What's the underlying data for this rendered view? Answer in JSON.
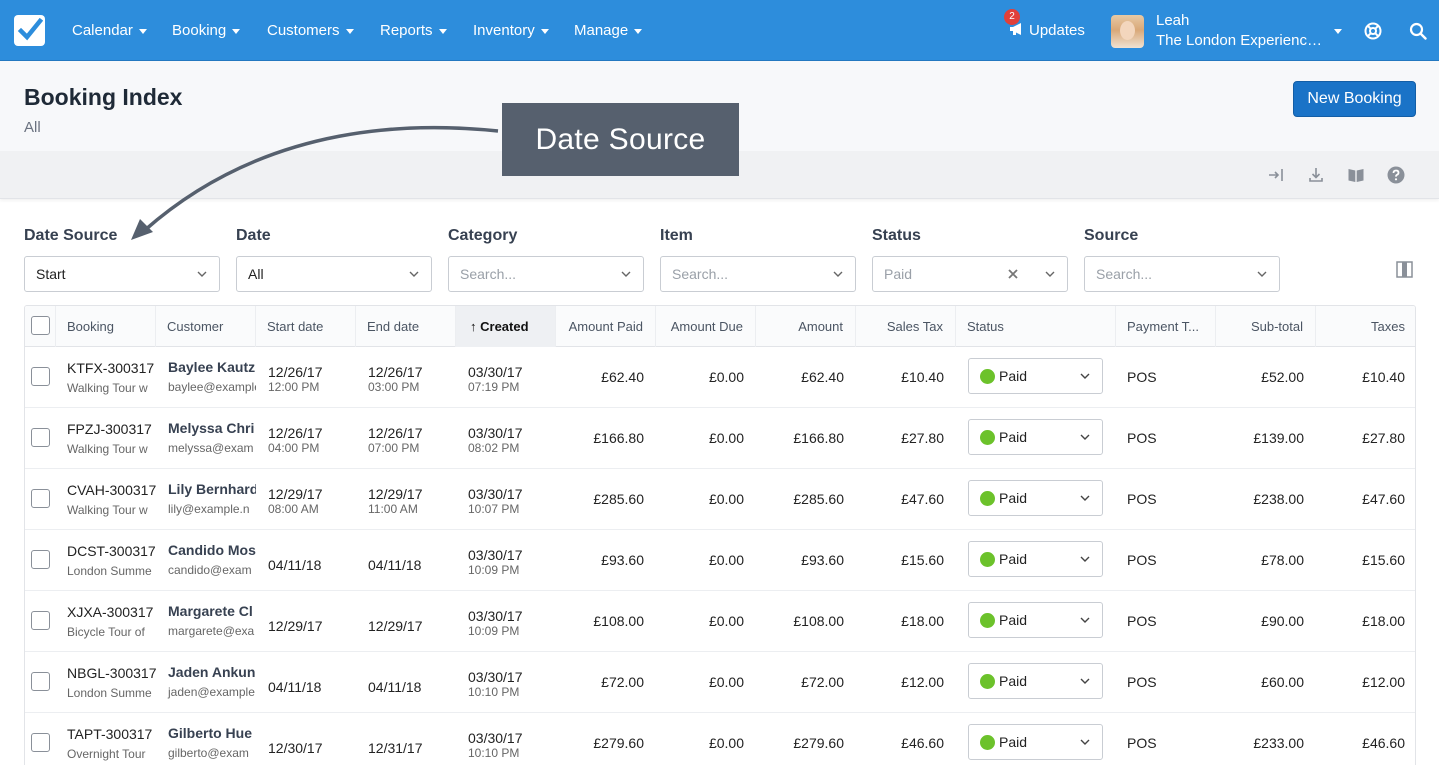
{
  "nav": {
    "items": [
      "Calendar",
      "Booking",
      "Customers",
      "Reports",
      "Inventory",
      "Manage"
    ],
    "updates_label": "Updates",
    "updates_count": "2",
    "user_name": "Leah",
    "user_company": "The London Experienc…"
  },
  "header": {
    "title": "Booking Index",
    "subtitle": "All",
    "new_booking_label": "New Booking"
  },
  "callout": {
    "text": "Date Source"
  },
  "filters": [
    {
      "label": "Date Source",
      "value": "Start",
      "placeholder": ""
    },
    {
      "label": "Date",
      "value": "All",
      "placeholder": ""
    },
    {
      "label": "Category",
      "value": "",
      "placeholder": "Search..."
    },
    {
      "label": "Item",
      "value": "",
      "placeholder": "Search..."
    },
    {
      "label": "Status",
      "value": "Paid",
      "placeholder": ""
    },
    {
      "label": "Source",
      "value": "",
      "placeholder": "Search..."
    }
  ],
  "table": {
    "columns": [
      "Booking",
      "Customer",
      "Start date",
      "End date",
      "Created",
      "Amount Paid",
      "Amount Due",
      "Amount",
      "Sales Tax",
      "Status",
      "Payment T...",
      "Sub-total",
      "Taxes"
    ],
    "sorted_column": "Created",
    "rows": [
      {
        "booking_id": "KTFX-300317",
        "booking_item": "Walking Tour w",
        "customer_name": "Baylee Kautz",
        "customer_email": "baylee@example",
        "start_date": "12/26/17",
        "start_time": "12:00 PM",
        "end_date": "12/26/17",
        "end_time": "03:00 PM",
        "created_date": "03/30/17",
        "created_time": "07:19 PM",
        "amount_paid": "£62.40",
        "amount_due": "£0.00",
        "amount": "£62.40",
        "sales_tax": "£10.40",
        "status": "Paid",
        "payment_type": "POS",
        "subtotal": "£52.00",
        "taxes": "£10.40"
      },
      {
        "booking_id": "FPZJ-300317",
        "booking_item": "Walking Tour w",
        "customer_name": "Melyssa Chri",
        "customer_email": "melyssa@exam",
        "start_date": "12/26/17",
        "start_time": "04:00 PM",
        "end_date": "12/26/17",
        "end_time": "07:00 PM",
        "created_date": "03/30/17",
        "created_time": "08:02 PM",
        "amount_paid": "£166.80",
        "amount_due": "£0.00",
        "amount": "£166.80",
        "sales_tax": "£27.80",
        "status": "Paid",
        "payment_type": "POS",
        "subtotal": "£139.00",
        "taxes": "£27.80"
      },
      {
        "booking_id": "CVAH-300317",
        "booking_item": "Walking Tour w",
        "customer_name": "Lily Bernhard",
        "customer_email": "lily@example.n",
        "start_date": "12/29/17",
        "start_time": "08:00 AM",
        "end_date": "12/29/17",
        "end_time": "11:00 AM",
        "created_date": "03/30/17",
        "created_time": "10:07 PM",
        "amount_paid": "£285.60",
        "amount_due": "£0.00",
        "amount": "£285.60",
        "sales_tax": "£47.60",
        "status": "Paid",
        "payment_type": "POS",
        "subtotal": "£238.00",
        "taxes": "£47.60"
      },
      {
        "booking_id": "DCST-300317",
        "booking_item": "London Summe",
        "customer_name": "Candido Mos",
        "customer_email": "candido@exam",
        "start_date": "04/11/18",
        "start_time": "",
        "end_date": "04/11/18",
        "end_time": "",
        "created_date": "03/30/17",
        "created_time": "10:09 PM",
        "amount_paid": "£93.60",
        "amount_due": "£0.00",
        "amount": "£93.60",
        "sales_tax": "£15.60",
        "status": "Paid",
        "payment_type": "POS",
        "subtotal": "£78.00",
        "taxes": "£15.60"
      },
      {
        "booking_id": "XJXA-300317",
        "booking_item": "Bicycle Tour of",
        "customer_name": "Margarete Cl",
        "customer_email": "margarete@exa",
        "start_date": "12/29/17",
        "start_time": "",
        "end_date": "12/29/17",
        "end_time": "",
        "created_date": "03/30/17",
        "created_time": "10:09 PM",
        "amount_paid": "£108.00",
        "amount_due": "£0.00",
        "amount": "£108.00",
        "sales_tax": "£18.00",
        "status": "Paid",
        "payment_type": "POS",
        "subtotal": "£90.00",
        "taxes": "£18.00"
      },
      {
        "booking_id": "NBGL-300317",
        "booking_item": "London Summe",
        "customer_name": "Jaden Ankun",
        "customer_email": "jaden@example",
        "start_date": "04/11/18",
        "start_time": "",
        "end_date": "04/11/18",
        "end_time": "",
        "created_date": "03/30/17",
        "created_time": "10:10 PM",
        "amount_paid": "£72.00",
        "amount_due": "£0.00",
        "amount": "£72.00",
        "sales_tax": "£12.00",
        "status": "Paid",
        "payment_type": "POS",
        "subtotal": "£60.00",
        "taxes": "£12.00"
      },
      {
        "booking_id": "TAPT-300317",
        "booking_item": "Overnight Tour",
        "customer_name": "Gilberto Hue",
        "customer_email": "gilberto@exam",
        "start_date": "12/30/17",
        "start_time": "",
        "end_date": "12/31/17",
        "end_time": "",
        "created_date": "03/30/17",
        "created_time": "10:10 PM",
        "amount_paid": "£279.60",
        "amount_due": "£0.00",
        "amount": "£279.60",
        "sales_tax": "£46.60",
        "status": "Paid",
        "payment_type": "POS",
        "subtotal": "£233.00",
        "taxes": "£46.60"
      }
    ]
  },
  "colors": {
    "nav_bg": "#2d8ddc",
    "primary_button": "#1a73c7",
    "status_paid": "#6cc22b",
    "callout_bg": "#56606e",
    "badge": "#e0403a"
  },
  "icons": [
    "check-logo-icon",
    "chevron-down-icon",
    "megaphone-icon",
    "lifebuoy-icon",
    "search-icon",
    "sign-in-icon",
    "download-icon",
    "book-icon",
    "question-icon",
    "columns-icon",
    "close-icon",
    "sort-up-arrow-icon"
  ]
}
